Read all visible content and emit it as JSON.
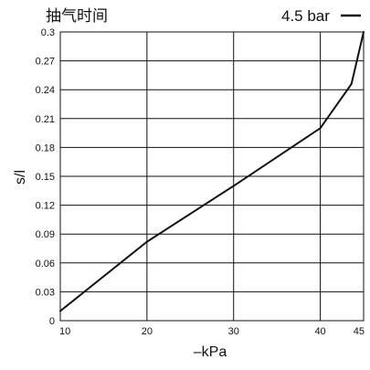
{
  "chart_data": {
    "type": "line",
    "title": "抽气时间",
    "xlabel": "–kPa",
    "ylabel": "s/l",
    "xlim": [
      10,
      45
    ],
    "ylim": [
      0,
      0.3
    ],
    "x_ticks": [
      10,
      20,
      30,
      40,
      45
    ],
    "x_tick_labels": [
      "10",
      "20",
      "30",
      "40",
      "45"
    ],
    "y_ticks": [
      0,
      0.03,
      0.06,
      0.09,
      0.12,
      0.15,
      0.18,
      0.21,
      0.24,
      0.27,
      0.3
    ],
    "y_tick_labels": [
      "0",
      "0.03",
      "0.06",
      "0.09",
      "0.12",
      "0.15",
      "0.18",
      "0.21",
      "0.24",
      "0.27",
      "0.3"
    ],
    "grid": true,
    "legend_position": "top-right",
    "series": [
      {
        "name": "4.5 bar",
        "color": "#111111",
        "x": [
          10,
          20,
          30,
          40,
          43.6,
          45
        ],
        "y": [
          0.01,
          0.082,
          0.14,
          0.2,
          0.246,
          0.3
        ]
      }
    ]
  }
}
